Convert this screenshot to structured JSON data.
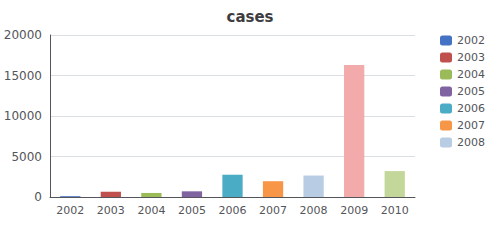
{
  "chart_data": {
    "type": "bar",
    "title": "cases",
    "categories": [
      "2002",
      "2003",
      "2004",
      "2005",
      "2006",
      "2007",
      "2008",
      "2009",
      "2010"
    ],
    "series": [
      {
        "name": "2002",
        "color": "#4472C4",
        "values": [
          100,
          null,
          null,
          null,
          null,
          null,
          null,
          null,
          null
        ]
      },
      {
        "name": "2003",
        "color": "#C0504D",
        "values": [
          null,
          650,
          null,
          null,
          null,
          null,
          null,
          null,
          null
        ]
      },
      {
        "name": "2004",
        "color": "#9BBB59",
        "values": [
          null,
          null,
          500,
          null,
          null,
          null,
          null,
          null,
          null
        ]
      },
      {
        "name": "2005",
        "color": "#8064A2",
        "values": [
          null,
          null,
          null,
          700,
          null,
          null,
          null,
          null,
          null
        ]
      },
      {
        "name": "2006",
        "color": "#4BACC6",
        "values": [
          null,
          null,
          null,
          null,
          2750,
          null,
          null,
          null,
          null
        ]
      },
      {
        "name": "2007",
        "color": "#F79646",
        "values": [
          null,
          null,
          null,
          null,
          null,
          1950,
          null,
          null,
          null
        ]
      },
      {
        "name": "2008",
        "color": "#B8CCE4",
        "values": [
          null,
          null,
          null,
          null,
          null,
          null,
          2650,
          null,
          null
        ]
      },
      {
        "color": "#F2AAAA",
        "values": [
          null,
          null,
          null,
          null,
          null,
          null,
          null,
          16300,
          null
        ]
      },
      {
        "color": "#C4D79B",
        "values": [
          null,
          null,
          null,
          null,
          null,
          null,
          null,
          null,
          3200
        ]
      }
    ],
    "ylim": [
      0,
      20000
    ],
    "yticks": [
      0,
      5000,
      10000,
      15000,
      20000
    ],
    "grid": true,
    "legend": "right"
  }
}
